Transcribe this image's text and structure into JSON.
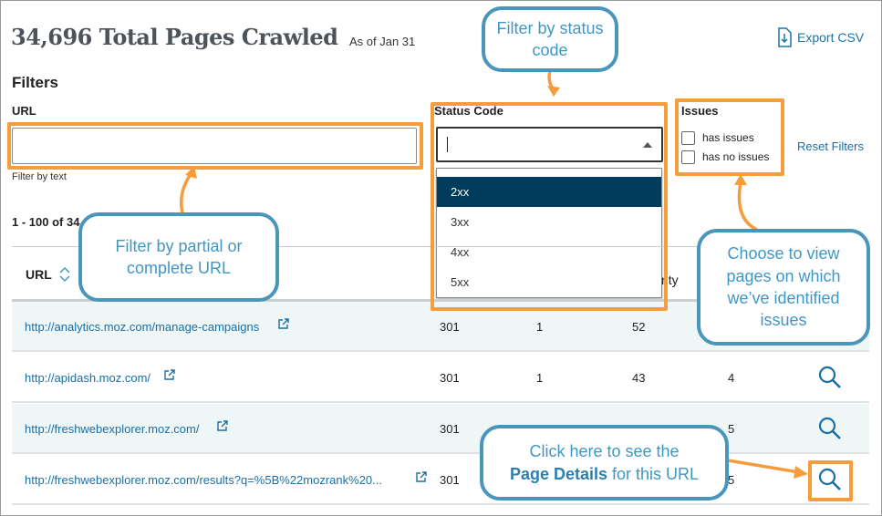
{
  "header": {
    "title": "34,696 Total Pages Crawled",
    "as_of": "As of Jan 31",
    "export_label": "Export CSV"
  },
  "filters": {
    "heading": "Filters",
    "url_label": "URL",
    "url_value": "",
    "url_hint": "Filter by text",
    "status_label": "Status Code",
    "status_value": "",
    "status_options": [
      "2xx",
      "3xx",
      "4xx",
      "5xx"
    ],
    "status_highlighted": "2xx",
    "issues_label": "Issues",
    "issues_options": [
      {
        "label": "has issues",
        "checked": false
      },
      {
        "label": "has no issues",
        "checked": false
      }
    ],
    "reset_label": "Reset Filters"
  },
  "results": {
    "range": "1 - 100 of 34",
    "columns": [
      "URL",
      "rity"
    ]
  },
  "rows": [
    {
      "url": "http://analytics.moz.com/manage-campaigns",
      "c1": "301",
      "c2": "1",
      "c3": "52",
      "c4": ""
    },
    {
      "url": "http://apidash.moz.com/",
      "c1": "301",
      "c2": "1",
      "c3": "43",
      "c4": "4"
    },
    {
      "url": "http://freshwebexplorer.moz.com/",
      "c1": "301",
      "c2": "",
      "c3": "",
      "c4": "5"
    },
    {
      "url": "http://freshwebexplorer.moz.com/results?q=%5B%22mozrank%20...",
      "c1": "301",
      "c2": "",
      "c3": "",
      "c4": "5"
    }
  ],
  "callouts": {
    "status": "Filter by status code",
    "url": "Filter by partial or complete URL",
    "issues": "Choose to view pages on which we’ve identified issues",
    "details_pre": "Click here to see the",
    "details_bold": "Page Details",
    "details_post": "for this URL"
  },
  "colors": {
    "accent": "#1a6fa6",
    "annotation_orange": "#f59c3c",
    "callout_blue": "#4a95bb",
    "selected_option": "#003b5c"
  }
}
